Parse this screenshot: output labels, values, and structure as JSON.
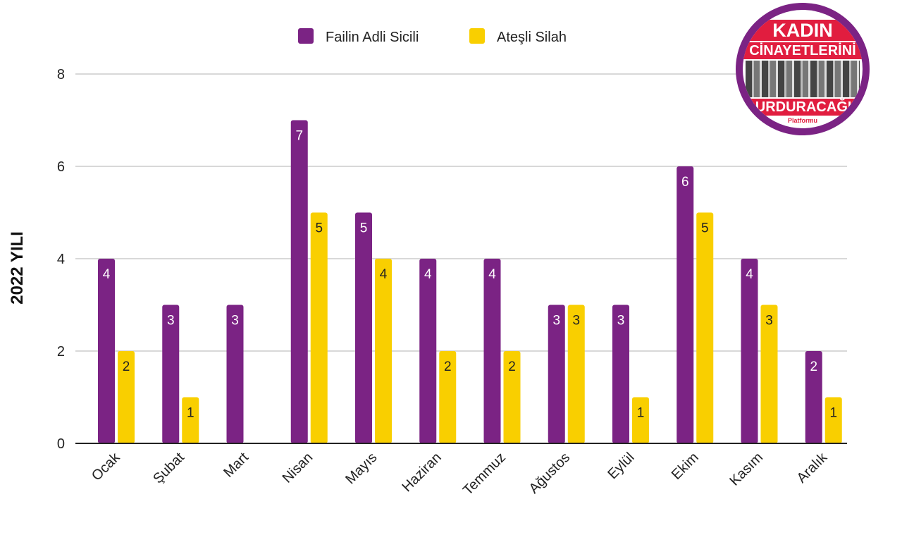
{
  "legend": [
    {
      "label": "Failin Adli Sicili",
      "color": "#7b2384"
    },
    {
      "label": "Ateşli Silah",
      "color": "#f9cf00"
    }
  ],
  "logo": {
    "line1": "KADIN",
    "line2": "CİNAYETLERİNİ",
    "line3": "DURDURACAĞIZ",
    "line4": "Platformu",
    "ring_color": "#7b2384",
    "banner_color": "#e11d3f"
  },
  "chart_data": {
    "type": "bar",
    "categories": [
      "Ocak",
      "Şubat",
      "Mart",
      "Nisan",
      "Mayıs",
      "Haziran",
      "Temmuz",
      "Ağustos",
      "Eylül",
      "Ekim",
      "Kasım",
      "Aralık"
    ],
    "series": [
      {
        "name": "Failin Adli Sicili",
        "color": "#7b2384",
        "label_color": "#ffffff",
        "values": [
          4,
          3,
          3,
          7,
          5,
          4,
          4,
          3,
          3,
          6,
          4,
          2
        ]
      },
      {
        "name": "Ateşli Silah",
        "color": "#f9cf00",
        "label_color": "#222222",
        "values": [
          2,
          1,
          0,
          5,
          4,
          2,
          2,
          3,
          1,
          5,
          3,
          1
        ]
      }
    ],
    "ylabel": "2022 YILI",
    "ylim": [
      0,
      8
    ],
    "yticks": [
      0,
      2,
      4,
      6,
      8
    ],
    "grid": true,
    "legend_position": "top-center"
  }
}
